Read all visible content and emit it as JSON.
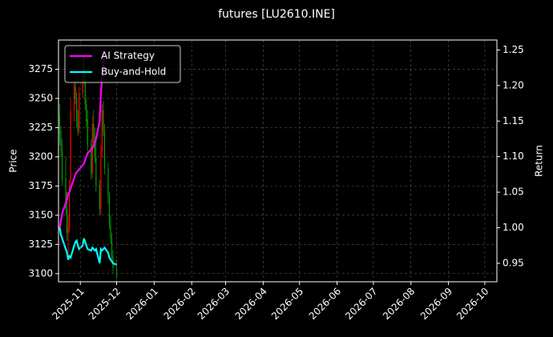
{
  "chart_data": {
    "type": "candlestick",
    "title": "futures [LU2610.INE]",
    "ylabel": "Price",
    "y2label": "Return",
    "x": [
      "2025-10-15",
      "2025-10-16",
      "2025-10-17",
      "2025-10-20",
      "2025-10-21",
      "2025-10-22",
      "2025-10-23",
      "2025-10-24",
      "2025-10-27",
      "2025-10-28",
      "2025-10-29",
      "2025-10-30",
      "2025-10-31",
      "2025-11-03",
      "2025-11-04",
      "2025-11-05",
      "2025-11-06",
      "2025-11-07",
      "2025-11-10",
      "2025-11-11",
      "2025-11-12",
      "2025-11-13",
      "2025-11-14",
      "2025-11-17",
      "2025-11-18",
      "2025-11-19",
      "2025-11-20",
      "2025-11-21",
      "2025-11-24",
      "2025-11-25",
      "2025-11-26",
      "2025-11-27",
      "2025-11-28",
      "2025-12-01"
    ],
    "open": [
      3235,
      3222,
      3205,
      3182,
      3155,
      3135,
      3140,
      3178,
      3240,
      3260,
      3250,
      3230,
      3225,
      3255,
      3280,
      3268,
      3245,
      3232,
      3210,
      3186,
      3228,
      3212,
      3200,
      3175,
      3155,
      3205,
      3240,
      3222,
      3190,
      3165,
      3142,
      3130,
      3115,
      3105
    ],
    "high": [
      3245,
      3226,
      3215,
      3200,
      3170,
      3150,
      3180,
      3250,
      3265,
      3270,
      3255,
      3240,
      3260,
      3285,
      3290,
      3272,
      3250,
      3240,
      3215,
      3235,
      3240,
      3225,
      3215,
      3180,
      3210,
      3245,
      3248,
      3228,
      3195,
      3170,
      3150,
      3135,
      3120,
      3112
    ],
    "low": [
      3210,
      3200,
      3175,
      3150,
      3128,
      3115,
      3135,
      3175,
      3230,
      3245,
      3225,
      3218,
      3220,
      3250,
      3262,
      3240,
      3225,
      3205,
      3180,
      3182,
      3208,
      3195,
      3170,
      3150,
      3150,
      3200,
      3218,
      3185,
      3160,
      3138,
      3125,
      3112,
      3100,
      3095
    ],
    "close": [
      3220,
      3205,
      3180,
      3155,
      3135,
      3140,
      3175,
      3240,
      3262,
      3250,
      3230,
      3222,
      3255,
      3280,
      3268,
      3245,
      3230,
      3210,
      3185,
      3228,
      3212,
      3200,
      3175,
      3155,
      3205,
      3240,
      3222,
      3190,
      3165,
      3142,
      3130,
      3115,
      3105,
      3098
    ],
    "up_color": "#ff0000",
    "down_color": "#00a000",
    "series": [
      {
        "name": "AI Strategy",
        "color": "#ff00ff",
        "axis": "y2",
        "values": [
          1.0,
          1.01,
          1.02,
          1.035,
          1.04,
          1.048,
          1.05,
          1.055,
          1.07,
          1.075,
          1.078,
          1.08,
          1.082,
          1.088,
          1.09,
          1.095,
          1.1,
          1.105,
          1.11,
          1.112,
          1.115,
          1.12,
          1.125,
          1.15,
          1.19,
          1.21,
          1.23,
          1.25,
          null,
          null,
          null,
          null,
          null,
          null
        ]
      },
      {
        "name": "Buy-and-Hold",
        "color": "#00ffff",
        "axis": "y2",
        "values": [
          1.0,
          0.99,
          0.985,
          0.97,
          0.965,
          0.955,
          0.96,
          0.958,
          0.975,
          0.98,
          0.982,
          0.975,
          0.97,
          0.975,
          0.985,
          0.98,
          0.975,
          0.97,
          0.968,
          0.972,
          0.97,
          0.968,
          0.97,
          0.95,
          0.97,
          0.968,
          0.97,
          0.972,
          0.965,
          0.958,
          0.955,
          0.953,
          0.95,
          0.948
        ]
      }
    ],
    "xlim": [
      "2025-10-14",
      "2026-10-11"
    ],
    "xticks": [
      {
        "value": "2025-11-01",
        "label": "2025-11"
      },
      {
        "value": "2025-12-01",
        "label": "2025-12"
      },
      {
        "value": "2026-01-01",
        "label": "2026-01"
      },
      {
        "value": "2026-02-01",
        "label": "2026-02"
      },
      {
        "value": "2026-03-01",
        "label": "2026-03"
      },
      {
        "value": "2026-04-01",
        "label": "2026-04"
      },
      {
        "value": "2026-05-01",
        "label": "2026-05"
      },
      {
        "value": "2026-06-01",
        "label": "2026-06"
      },
      {
        "value": "2026-07-01",
        "label": "2026-07"
      },
      {
        "value": "2026-08-01",
        "label": "2026-08"
      },
      {
        "value": "2026-09-01",
        "label": "2026-09"
      },
      {
        "value": "2026-10-01",
        "label": "2026-10"
      }
    ],
    "ylim": [
      3093,
      3300
    ],
    "yticks": [
      3100,
      3125,
      3150,
      3175,
      3200,
      3225,
      3250,
      3275
    ],
    "y2lim": [
      0.924,
      1.264
    ],
    "y2ticks": [
      0.95,
      {
        "value": 1.0,
        "label": "1.00"
      },
      1.05,
      {
        "value": 1.1,
        "label": "1.10"
      },
      1.15,
      {
        "value": 1.2,
        "label": "1.20"
      },
      1.25
    ],
    "grid": true,
    "legend": "upper left"
  }
}
